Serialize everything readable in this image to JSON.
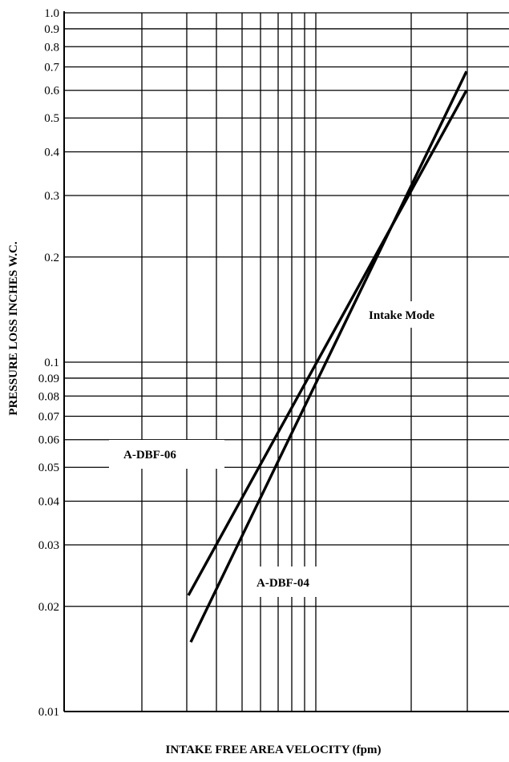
{
  "chart_data": {
    "type": "line",
    "title": "",
    "xlabel": "INTAKE FREE AREA VELOCITY (fpm)",
    "ylabel": "PRESSURE LOSS INCHES  W.C.",
    "y_scale": "log",
    "ylim": [
      0.01,
      1.0
    ],
    "y_ticks": [
      "1.0",
      "0.9",
      "0.8",
      "0.7",
      "0.6",
      "0.5",
      "0.4",
      "0.3",
      "0.2",
      "0.1",
      "0.09",
      "0.08",
      "0.07",
      "0.06",
      "0.05",
      "0.04",
      "0.03",
      "0.02",
      "0.01"
    ],
    "x_tick_labels": [],
    "grid": true,
    "annotations": [
      "Intake Mode",
      "A-DBF-06",
      "A-DBF-04"
    ],
    "series": [
      {
        "name": "A-DBF-06",
        "points": [
          {
            "y": 0.0215
          },
          {
            "y": 0.6
          }
        ]
      },
      {
        "name": "A-DBF-04",
        "points": [
          {
            "y": 0.0158
          },
          {
            "y": 0.68
          }
        ]
      }
    ]
  }
}
